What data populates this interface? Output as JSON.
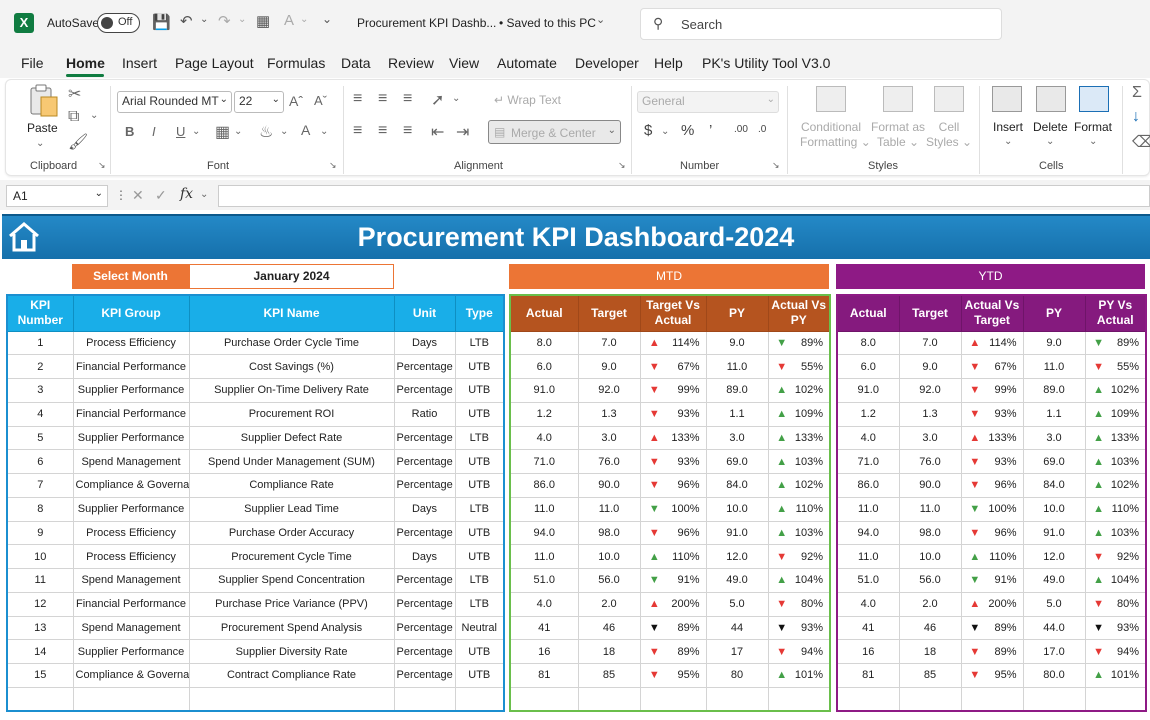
{
  "titlebar": {
    "autosave_label": "AutoSave",
    "toggle_label": "Off",
    "doc_title": "Procurement KPI Dashb...",
    "saved_status": "• Saved to this PC",
    "search_placeholder": "Search"
  },
  "menu": [
    "File",
    "Home",
    "Insert",
    "Page Layout",
    "Formulas",
    "Data",
    "Review",
    "View",
    "Automate",
    "Developer",
    "Help",
    "PK's Utility Tool V3.0"
  ],
  "ribbon": {
    "paste": "Paste",
    "clipboard": "Clipboard",
    "font_name": "Arial Rounded MT",
    "font_size": "22",
    "font": "Font",
    "wrap_text": "Wrap Text",
    "merge_center": "Merge & Center",
    "alignment": "Alignment",
    "number_format": "General",
    "number": "Number",
    "conditional_formatting": [
      "Conditional",
      "Formatting"
    ],
    "format_as_table": [
      "Format as",
      "Table"
    ],
    "cell_styles": [
      "Cell",
      "Styles"
    ],
    "styles": "Styles",
    "insert": "Insert",
    "delete": "Delete",
    "format": "Format",
    "cells": "Cells"
  },
  "formula_bar": {
    "name_box": "A1",
    "fx": "fx"
  },
  "dashboard": {
    "title": "Procurement KPI Dashboard-2024",
    "select_month_label": "Select Month",
    "month_value": "January 2024",
    "mtd_label": "MTD",
    "ytd_label": "YTD",
    "headers_main": [
      "KPI Number",
      "KPI Group",
      "KPI Name",
      "Unit",
      "Type"
    ],
    "headers_mtd": [
      "Actual",
      "Target",
      "Target Vs Actual",
      "PY",
      "Actual Vs PY"
    ],
    "headers_ytd": [
      "Actual",
      "Target",
      "Actual Vs Target",
      "PY",
      "PY Vs Actual"
    ],
    "rows": [
      {
        "n": "1",
        "group": "Process Efficiency",
        "name": "Purchase Order Cycle Time",
        "unit": "Days",
        "type": "LTB",
        "m_act": "8.0",
        "m_tgt": "7.0",
        "m_tva": "114%",
        "m_tva_i": "up-r",
        "m_py": "9.0",
        "m_avp": "89%",
        "m_avp_i": "down-g",
        "y_act": "8.0",
        "y_tgt": "7.0",
        "y_avt": "114%",
        "y_avt_i": "up-r",
        "y_py": "9.0",
        "y_pva": "89%",
        "y_pva_i": "down-g"
      },
      {
        "n": "2",
        "group": "Financial Performance",
        "name": "Cost Savings (%)",
        "unit": "Percentage",
        "type": "UTB",
        "m_act": "6.0",
        "m_tgt": "9.0",
        "m_tva": "67%",
        "m_tva_i": "down-r",
        "m_py": "11.0",
        "m_avp": "55%",
        "m_avp_i": "down-r",
        "y_act": "6.0",
        "y_tgt": "9.0",
        "y_avt": "67%",
        "y_avt_i": "down-r",
        "y_py": "11.0",
        "y_pva": "55%",
        "y_pva_i": "down-r"
      },
      {
        "n": "3",
        "group": "Supplier Performance",
        "name": "Supplier On-Time Delivery Rate",
        "unit": "Percentage",
        "type": "UTB",
        "m_act": "91.0",
        "m_tgt": "92.0",
        "m_tva": "99%",
        "m_tva_i": "down-r",
        "m_py": "89.0",
        "m_avp": "102%",
        "m_avp_i": "up-g",
        "y_act": "91.0",
        "y_tgt": "92.0",
        "y_avt": "99%",
        "y_avt_i": "down-r",
        "y_py": "89.0",
        "y_pva": "102%",
        "y_pva_i": "up-g"
      },
      {
        "n": "4",
        "group": "Financial Performance",
        "name": "Procurement ROI",
        "unit": "Ratio",
        "type": "UTB",
        "m_act": "1.2",
        "m_tgt": "1.3",
        "m_tva": "93%",
        "m_tva_i": "down-r",
        "m_py": "1.1",
        "m_avp": "109%",
        "m_avp_i": "up-g",
        "y_act": "1.2",
        "y_tgt": "1.3",
        "y_avt": "93%",
        "y_avt_i": "down-r",
        "y_py": "1.1",
        "y_pva": "109%",
        "y_pva_i": "up-g"
      },
      {
        "n": "5",
        "group": "Supplier Performance",
        "name": "Supplier Defect Rate",
        "unit": "Percentage",
        "type": "LTB",
        "m_act": "4.0",
        "m_tgt": "3.0",
        "m_tva": "133%",
        "m_tva_i": "up-r",
        "m_py": "3.0",
        "m_avp": "133%",
        "m_avp_i": "up-g",
        "y_act": "4.0",
        "y_tgt": "3.0",
        "y_avt": "133%",
        "y_avt_i": "up-r",
        "y_py": "3.0",
        "y_pva": "133%",
        "y_pva_i": "up-g"
      },
      {
        "n": "6",
        "group": "Spend Management",
        "name": "Spend Under Management (SUM)",
        "unit": "Percentage",
        "type": "UTB",
        "m_act": "71.0",
        "m_tgt": "76.0",
        "m_tva": "93%",
        "m_tva_i": "down-r",
        "m_py": "69.0",
        "m_avp": "103%",
        "m_avp_i": "up-g",
        "y_act": "71.0",
        "y_tgt": "76.0",
        "y_avt": "93%",
        "y_avt_i": "down-r",
        "y_py": "69.0",
        "y_pva": "103%",
        "y_pva_i": "up-g"
      },
      {
        "n": "7",
        "group": "Compliance & Governance",
        "name": "Compliance Rate",
        "unit": "Percentage",
        "type": "UTB",
        "m_act": "86.0",
        "m_tgt": "90.0",
        "m_tva": "96%",
        "m_tva_i": "down-r",
        "m_py": "84.0",
        "m_avp": "102%",
        "m_avp_i": "up-g",
        "y_act": "86.0",
        "y_tgt": "90.0",
        "y_avt": "96%",
        "y_avt_i": "down-r",
        "y_py": "84.0",
        "y_pva": "102%",
        "y_pva_i": "up-g"
      },
      {
        "n": "8",
        "group": "Supplier Performance",
        "name": "Supplier Lead Time",
        "unit": "Days",
        "type": "LTB",
        "m_act": "11.0",
        "m_tgt": "11.0",
        "m_tva": "100%",
        "m_tva_i": "down-g",
        "m_py": "10.0",
        "m_avp": "110%",
        "m_avp_i": "up-g",
        "y_act": "11.0",
        "y_tgt": "11.0",
        "y_avt": "100%",
        "y_avt_i": "down-g",
        "y_py": "10.0",
        "y_pva": "110%",
        "y_pva_i": "up-g"
      },
      {
        "n": "9",
        "group": "Process Efficiency",
        "name": "Purchase Order Accuracy",
        "unit": "Percentage",
        "type": "UTB",
        "m_act": "94.0",
        "m_tgt": "98.0",
        "m_tva": "96%",
        "m_tva_i": "down-r",
        "m_py": "91.0",
        "m_avp": "103%",
        "m_avp_i": "up-g",
        "y_act": "94.0",
        "y_tgt": "98.0",
        "y_avt": "96%",
        "y_avt_i": "down-r",
        "y_py": "91.0",
        "y_pva": "103%",
        "y_pva_i": "up-g"
      },
      {
        "n": "10",
        "group": "Process Efficiency",
        "name": "Procurement Cycle Time",
        "unit": "Days",
        "type": "UTB",
        "m_act": "11.0",
        "m_tgt": "10.0",
        "m_tva": "110%",
        "m_tva_i": "up-g",
        "m_py": "12.0",
        "m_avp": "92%",
        "m_avp_i": "down-r",
        "y_act": "11.0",
        "y_tgt": "10.0",
        "y_avt": "110%",
        "y_avt_i": "up-g",
        "y_py": "12.0",
        "y_pva": "92%",
        "y_pva_i": "down-r"
      },
      {
        "n": "11",
        "group": "Spend Management",
        "name": "Supplier Spend Concentration",
        "unit": "Percentage",
        "type": "LTB",
        "m_act": "51.0",
        "m_tgt": "56.0",
        "m_tva": "91%",
        "m_tva_i": "down-g",
        "m_py": "49.0",
        "m_avp": "104%",
        "m_avp_i": "up-g",
        "y_act": "51.0",
        "y_tgt": "56.0",
        "y_avt": "91%",
        "y_avt_i": "down-g",
        "y_py": "49.0",
        "y_pva": "104%",
        "y_pva_i": "up-g"
      },
      {
        "n": "12",
        "group": "Financial Performance",
        "name": "Purchase Price Variance (PPV)",
        "unit": "Percentage",
        "type": "LTB",
        "m_act": "4.0",
        "m_tgt": "2.0",
        "m_tva": "200%",
        "m_tva_i": "up-r",
        "m_py": "5.0",
        "m_avp": "80%",
        "m_avp_i": "down-r",
        "y_act": "4.0",
        "y_tgt": "2.0",
        "y_avt": "200%",
        "y_avt_i": "up-r",
        "y_py": "5.0",
        "y_pva": "80%",
        "y_pva_i": "down-r"
      },
      {
        "n": "13",
        "group": "Spend Management",
        "name": "Procurement Spend Analysis",
        "unit": "Percentage",
        "type": "Neutral",
        "m_act": "41",
        "m_tgt": "46",
        "m_tva": "89%",
        "m_tva_i": "blk",
        "m_py": "44",
        "m_avp": "93%",
        "m_avp_i": "blk",
        "y_act": "41",
        "y_tgt": "46",
        "y_avt": "89%",
        "y_avt_i": "blk",
        "y_py": "44.0",
        "y_pva": "93%",
        "y_pva_i": "blk"
      },
      {
        "n": "14",
        "group": "Supplier Performance",
        "name": "Supplier Diversity Rate",
        "unit": "Percentage",
        "type": "UTB",
        "m_act": "16",
        "m_tgt": "18",
        "m_tva": "89%",
        "m_tva_i": "down-r",
        "m_py": "17",
        "m_avp": "94%",
        "m_avp_i": "down-r",
        "y_act": "16",
        "y_tgt": "18",
        "y_avt": "89%",
        "y_avt_i": "down-r",
        "y_py": "17.0",
        "y_pva": "94%",
        "y_pva_i": "down-r"
      },
      {
        "n": "15",
        "group": "Compliance & Governance",
        "name": "Contract Compliance Rate",
        "unit": "Percentage",
        "type": "UTB",
        "m_act": "81",
        "m_tgt": "85",
        "m_tva": "95%",
        "m_tva_i": "down-r",
        "m_py": "80",
        "m_avp": "101%",
        "m_avp_i": "up-g",
        "y_act": "81",
        "y_tgt": "85",
        "y_avt": "95%",
        "y_avt_i": "down-r",
        "y_py": "80.0",
        "y_pva": "101%",
        "y_pva_i": "up-g"
      }
    ]
  }
}
